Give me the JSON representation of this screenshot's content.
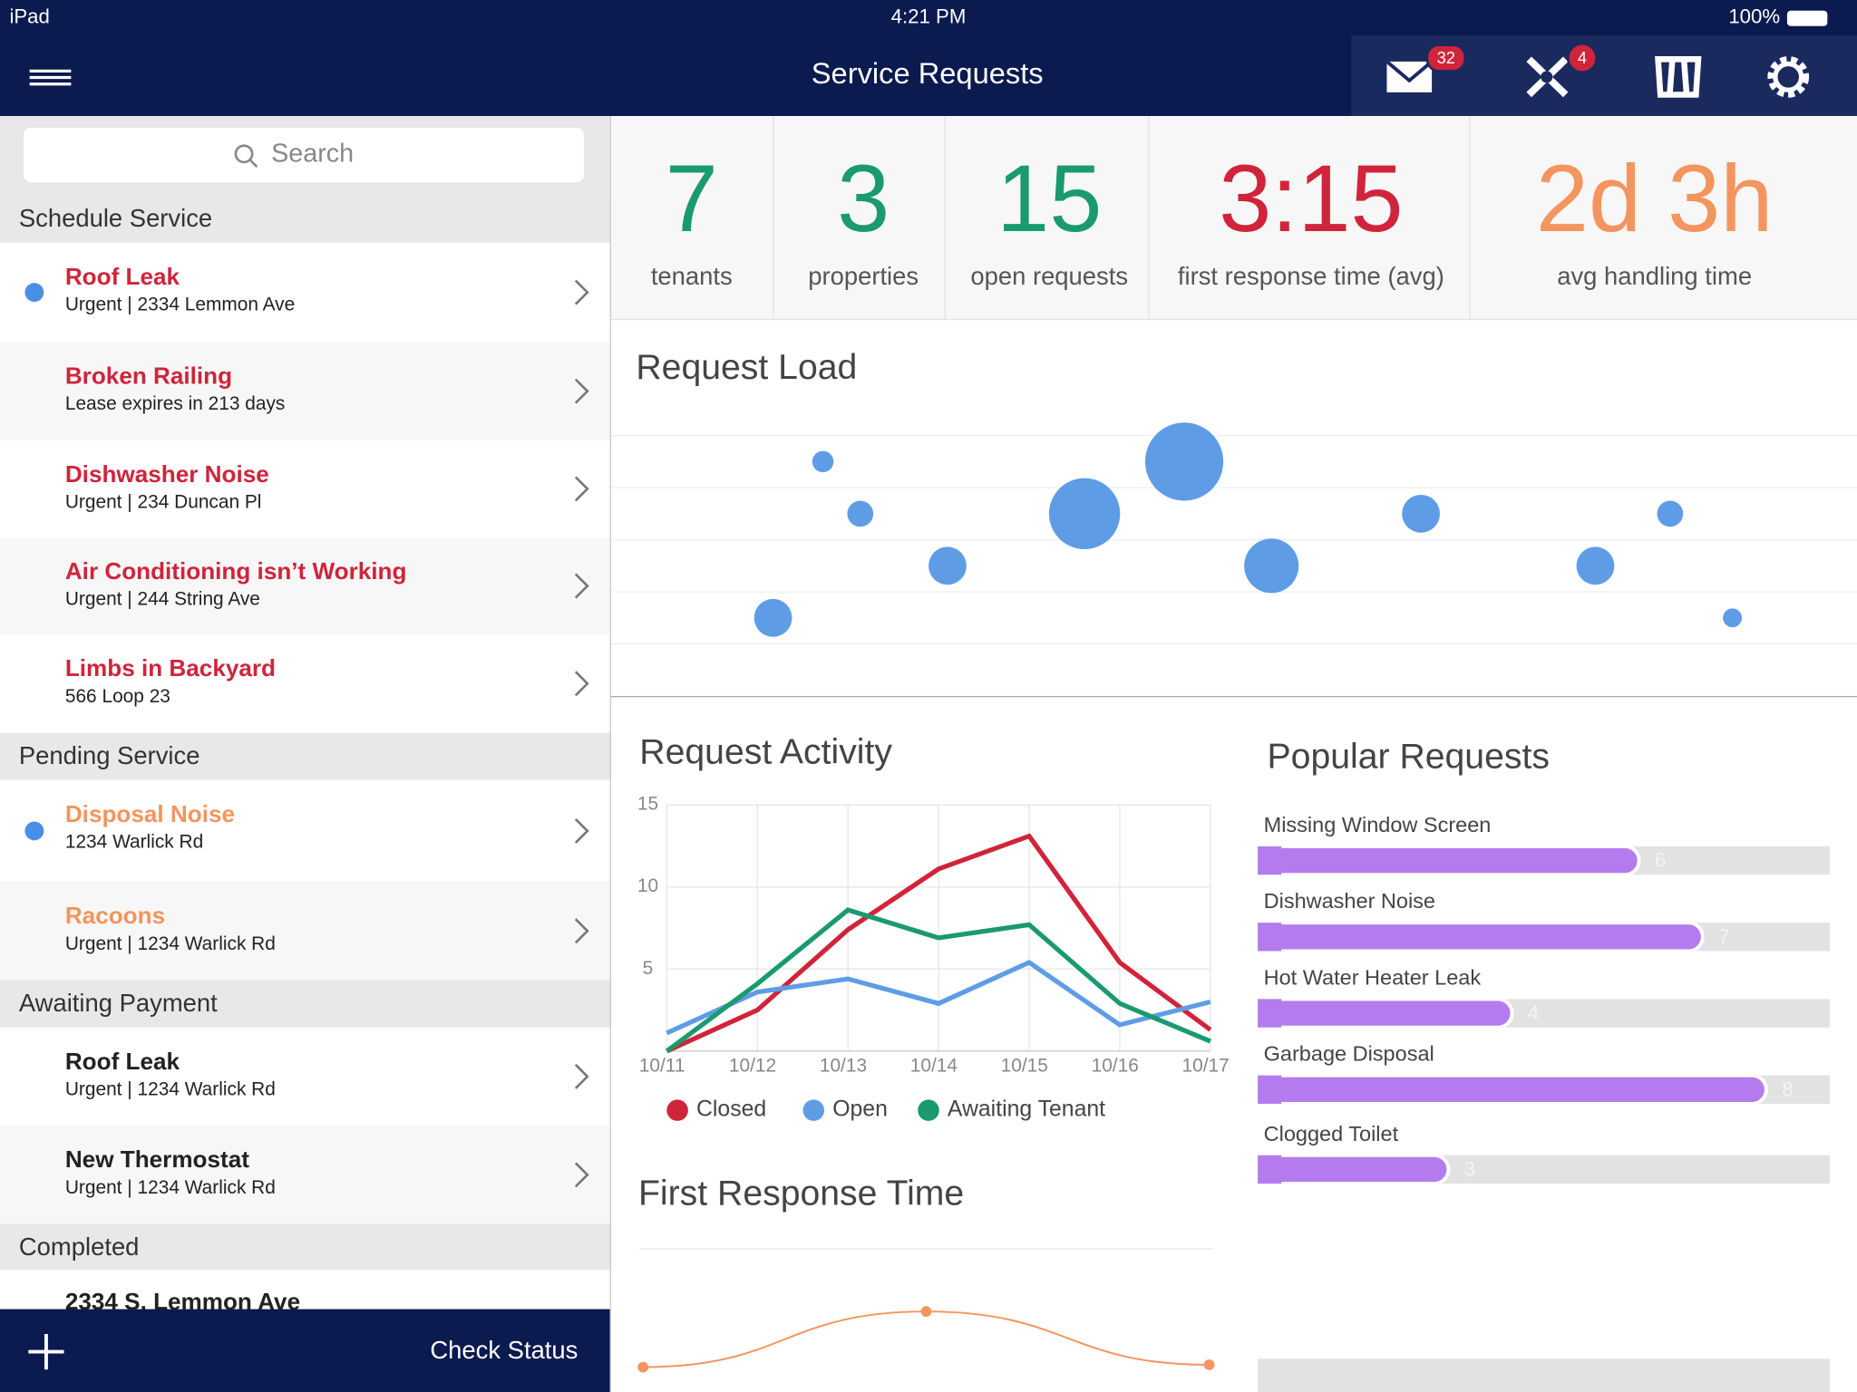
{
  "status_bar": {
    "device": "iPad",
    "time": "4:21 PM",
    "battery": "100%"
  },
  "nav": {
    "title": "Service Requests",
    "badges": [
      32,
      4
    ]
  },
  "sidebar": {
    "search_placeholder": "Search",
    "sections": [
      {
        "title": "Schedule Service",
        "items": [
          {
            "title": "Roof Leak",
            "subtitle": "Urgent | 2334 Lemmon Ave",
            "dot": true,
            "color": "#d0243a"
          },
          {
            "title": "Broken Railing",
            "subtitle": "Lease expires in 213 days",
            "dot": false,
            "color": "#d0243a"
          },
          {
            "title": "Dishwasher Noise",
            "subtitle": "Urgent | 234 Duncan Pl",
            "dot": false,
            "color": "#d0243a"
          },
          {
            "title": "Air Conditioning isn’t Working",
            "subtitle": "Urgent | 244 String Ave",
            "dot": false,
            "color": "#d0243a"
          },
          {
            "title": "Limbs in Backyard",
            "subtitle": "566 Loop 23",
            "dot": false,
            "color": "#d0243a"
          }
        ]
      },
      {
        "title": "Pending Service",
        "items": [
          {
            "title": "Disposal Noise",
            "subtitle": "1234 Warlick Rd",
            "dot": true,
            "color": "#f2955e"
          },
          {
            "title": "Racoons",
            "subtitle": "Urgent | 1234 Warlick Rd",
            "dot": false,
            "color": "#f2955e"
          }
        ]
      },
      {
        "title": "Awaiting Payment",
        "items": [
          {
            "title": "Roof Leak",
            "subtitle": "Urgent | 1234 Warlick Rd",
            "dot": false,
            "color": "#222222"
          },
          {
            "title": "New Thermostat",
            "subtitle": "Urgent | 1234 Warlick Rd",
            "dot": false,
            "color": "#222222"
          }
        ]
      },
      {
        "title": "Completed",
        "items": [
          {
            "title": "2334 S. Lemmon Ave",
            "dot": false,
            "color": "#222222"
          }
        ]
      }
    ],
    "footer": {
      "button": "Check Status"
    }
  },
  "stats": [
    {
      "value": "7",
      "label": "tenants",
      "color": "#1a9a6e"
    },
    {
      "value": "3",
      "label": "properties",
      "color": "#1a9a6e"
    },
    {
      "value": "15",
      "label": "open requests",
      "color": "#1a9a6e"
    },
    {
      "value": "3:15",
      "label": "first response time (avg)",
      "color": "#d0243a"
    },
    {
      "value": "2d 3h",
      "label": "avg handling time",
      "color": "#f2955e"
    }
  ],
  "chart_data": [
    {
      "type": "bubble",
      "title": "Request Load",
      "color": "#5e9de6",
      "x": [
        13,
        17,
        20,
        27,
        38,
        46,
        53,
        65,
        79,
        85,
        90
      ],
      "values": [
        1,
        4,
        3,
        2,
        3,
        4,
        2,
        3,
        2,
        3,
        1
      ],
      "sizes": [
        16,
        9,
        11,
        16,
        30,
        33,
        23,
        16,
        16,
        11,
        8
      ],
      "xlim": [
        0,
        100
      ],
      "ylim": [
        0.5,
        4.5
      ]
    },
    {
      "type": "line",
      "title": "Request Activity",
      "categories": [
        "10/11",
        "10/12",
        "10/13",
        "10/14",
        "10/15",
        "10/16",
        "10/17"
      ],
      "series": [
        {
          "name": "Closed",
          "color": "#d0243a",
          "values": [
            0,
            2.5,
            7.4,
            11.1,
            13.1,
            5.4,
            1.3
          ]
        },
        {
          "name": "Open",
          "color": "#5e9de6",
          "values": [
            1.1,
            3.6,
            4.4,
            2.9,
            5.4,
            1.6,
            3.0
          ]
        },
        {
          "name": "Awaiting Tenant",
          "color": "#1a9a6e",
          "values": [
            0,
            4.1,
            8.6,
            6.9,
            7.7,
            2.9,
            0.6
          ]
        }
      ],
      "ylim": [
        0,
        15
      ],
      "yticks": [
        5,
        10,
        15
      ],
      "grid": true
    },
    {
      "type": "hbar",
      "title": "Popular Requests",
      "color": "#b57bee",
      "categories": [
        "Missing Window Screen",
        "Dishwasher Noise",
        "Hot Water Heater Leak",
        "Garbage Disposal",
        "Clogged Toilet"
      ],
      "values": [
        6,
        7,
        4,
        8,
        3
      ],
      "xlim": [
        0,
        9
      ]
    },
    {
      "type": "smooth",
      "title": "First Response Time",
      "color": "#f2955e",
      "values": [
        1.05,
        3.4,
        1.15
      ],
      "ylim": [
        0,
        6
      ]
    }
  ]
}
